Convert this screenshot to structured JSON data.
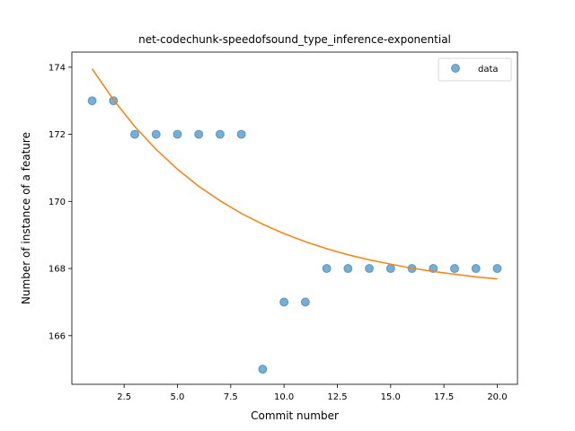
{
  "chart_data": {
    "type": "scatter",
    "title": "net-codechunk-speedofsound_type_inference-exponential",
    "xlabel": "Commit number",
    "ylabel": "Number of instance of a feature",
    "xlim": [
      0.05,
      20.95
    ],
    "ylim": [
      164.55,
      174.45
    ],
    "xticks": [
      2.5,
      5.0,
      7.5,
      10.0,
      12.5,
      15.0,
      17.5,
      20.0
    ],
    "xtick_labels": [
      "2.5",
      "5.0",
      "7.5",
      "10.0",
      "12.5",
      "15.0",
      "17.5",
      "20.0"
    ],
    "yticks": [
      166,
      168,
      170,
      172,
      174
    ],
    "ytick_labels": [
      "166",
      "168",
      "170",
      "172",
      "174"
    ],
    "grid": false,
    "legend_position": "top-right",
    "series": [
      {
        "name": "data",
        "kind": "scatter",
        "color": "#1f77b4",
        "x": [
          1,
          2,
          3,
          4,
          5,
          6,
          7,
          8,
          9,
          10,
          11,
          12,
          13,
          14,
          15,
          16,
          17,
          18,
          19,
          20
        ],
        "y": [
          173,
          173,
          172,
          172,
          172,
          172,
          172,
          172,
          165,
          167,
          167,
          168,
          168,
          168,
          168,
          168,
          168,
          168,
          168,
          168
        ]
      },
      {
        "kind": "line",
        "color": "#ff7f0e",
        "x": [
          1,
          2,
          3,
          4,
          5,
          6,
          7,
          8,
          9,
          10,
          11,
          12,
          13,
          14,
          15,
          16,
          17,
          18,
          19,
          20
        ],
        "y": [
          173.95,
          173.03,
          172.23,
          171.55,
          170.96,
          170.45,
          170.02,
          169.64,
          169.32,
          169.04,
          168.8,
          168.59,
          168.41,
          168.26,
          168.13,
          168.01,
          167.91,
          167.83,
          167.75,
          167.69
        ]
      }
    ]
  }
}
